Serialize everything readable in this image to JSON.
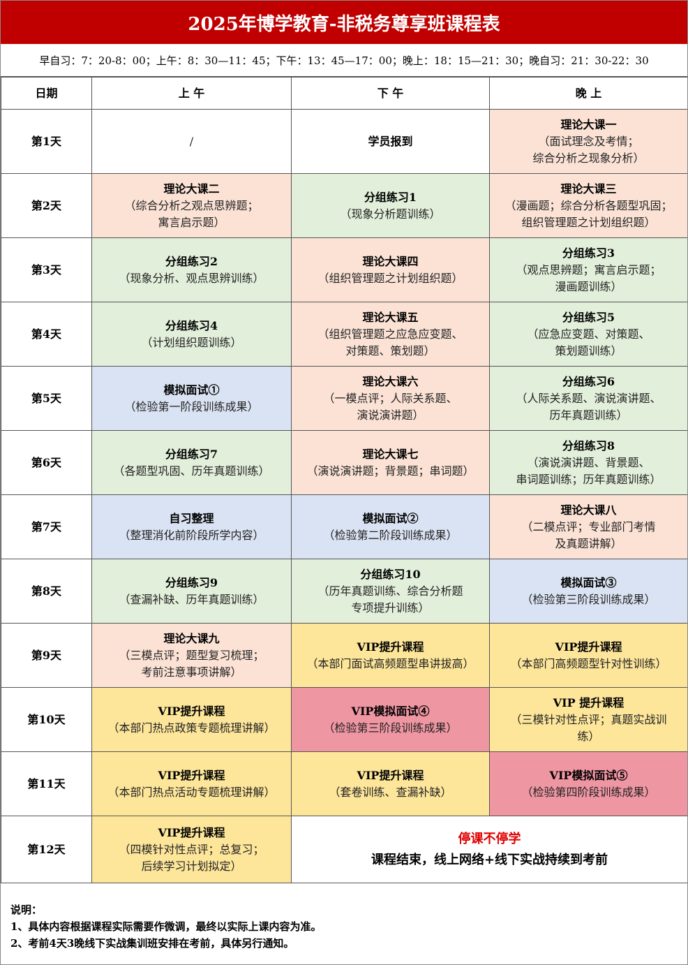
{
  "header": {
    "title": "2025年博学教育-非税务尊享班课程表",
    "schedule": "早自习：7：20-8：00；上午：8：30—11：45；下午：13：45—17：00；晚上：18：15—21：30；晚自习：21：30-22：30"
  },
  "table": {
    "columns": [
      "日期",
      "上 午",
      "下 午",
      "晚 上"
    ],
    "rows": [
      {
        "day": "第1天",
        "cells": [
          {
            "title": "",
            "desc": [
              "/"
            ],
            "color": "#ffffff"
          },
          {
            "title": "学员报到",
            "desc": [],
            "color": "#ffffff"
          },
          {
            "title": "理论大课一",
            "desc": [
              "（面试理念及考情；",
              "综合分析之现象分析）"
            ],
            "color": "#fbe2d5"
          }
        ]
      },
      {
        "day": "第2天",
        "cells": [
          {
            "title": "理论大课二",
            "desc": [
              "（综合分析之观点思辨题；",
              "寓言启示题）"
            ],
            "color": "#fbe2d5"
          },
          {
            "title": "分组练习1",
            "desc": [
              "（现象分析题训练）"
            ],
            "color": "#e2efda"
          },
          {
            "title": "理论大课三",
            "desc": [
              "（漫画题；综合分析各题型巩固；",
              "组织管理题之计划组织题）"
            ],
            "color": "#fbe2d5"
          }
        ]
      },
      {
        "day": "第3天",
        "cells": [
          {
            "title": "分组练习2",
            "desc": [
              "（现象分析、观点思辨训练）"
            ],
            "color": "#e2efda"
          },
          {
            "title": "理论大课四",
            "desc": [
              "（组织管理题之计划组织题）"
            ],
            "color": "#fbe2d5"
          },
          {
            "title": "分组练习3",
            "desc": [
              "（观点思辨题；寓言启示题；",
              "漫画题训练）"
            ],
            "color": "#e2efda"
          }
        ]
      },
      {
        "day": "第4天",
        "cells": [
          {
            "title": "分组练习4",
            "desc": [
              "（计划组织题训练）"
            ],
            "color": "#e2efda"
          },
          {
            "title": "理论大课五",
            "desc": [
              "（组织管理题之应急应变题、",
              "对策题、策划题）"
            ],
            "color": "#fbe2d5"
          },
          {
            "title": "分组练习5",
            "desc": [
              "（应急应变题、对策题、",
              "策划题训练）"
            ],
            "color": "#e2efda"
          }
        ]
      },
      {
        "day": "第5天",
        "cells": [
          {
            "title": "模拟面试①",
            "desc": [
              "（检验第一阶段训练成果）"
            ],
            "color": "#dae3f3"
          },
          {
            "title": "理论大课六",
            "desc": [
              "（一模点评；人际关系题、",
              "演说演讲题）"
            ],
            "color": "#fbe2d5"
          },
          {
            "title": "分组练习6",
            "desc": [
              "（人际关系题、演说演讲题、",
              "历年真题训练）"
            ],
            "color": "#e2efda"
          }
        ]
      },
      {
        "day": "第6天",
        "cells": [
          {
            "title": "分组练习7",
            "desc": [
              "（各题型巩固、历年真题训练）"
            ],
            "color": "#e2efda"
          },
          {
            "title": "理论大课七",
            "desc": [
              "（演说演讲题；背景题；串词题）"
            ],
            "color": "#fbe2d5"
          },
          {
            "title": "分组练习8",
            "desc": [
              "（演说演讲题、背景题、",
              "串词题训练；历年真题训练）"
            ],
            "color": "#e2efda"
          }
        ]
      },
      {
        "day": "第7天",
        "cells": [
          {
            "title": "自习整理",
            "desc": [
              "（整理消化前阶段所学内容）"
            ],
            "color": "#dae3f3"
          },
          {
            "title": "模拟面试②",
            "desc": [
              "（检验第二阶段训练成果）"
            ],
            "color": "#dae3f3"
          },
          {
            "title": "理论大课八",
            "desc": [
              "（二模点评；专业部门考情",
              "及真题讲解）"
            ],
            "color": "#fbe2d5"
          }
        ]
      },
      {
        "day": "第8天",
        "cells": [
          {
            "title": "分组练习9",
            "desc": [
              "（查漏补缺、历年真题训练）"
            ],
            "color": "#e2efda"
          },
          {
            "title": "分组练习10",
            "desc": [
              "（历年真题训练、综合分析题",
              "专项提升训练）"
            ],
            "color": "#e2efda"
          },
          {
            "title": "模拟面试③",
            "desc": [
              "（检验第三阶段训练成果）"
            ],
            "color": "#dae3f3"
          }
        ]
      },
      {
        "day": "第9天",
        "cells": [
          {
            "title": "理论大课九",
            "desc": [
              "（三模点评；题型复习梳理；",
              "考前注意事项讲解）"
            ],
            "color": "#fbe2d5"
          },
          {
            "title": "VIP提升课程",
            "desc": [
              "（本部门面试高频题型串讲拔高）"
            ],
            "color": "#fde69a"
          },
          {
            "title": "VIP提升课程",
            "desc": [
              "（本部门高频题型针对性训练）"
            ],
            "color": "#fde69a"
          }
        ]
      },
      {
        "day": "第10天",
        "cells": [
          {
            "title": "VIP提升课程",
            "desc": [
              "（本部门热点政策专题梳理讲解）"
            ],
            "color": "#fde69a"
          },
          {
            "title": "VIP模拟面试④",
            "desc": [
              "（检验第三阶段训练成果）"
            ],
            "color": "#ee96a2"
          },
          {
            "title": "VIP  提升课程",
            "desc": [
              "（三模针对性点评；真题实战训",
              "练）"
            ],
            "color": "#fde69a"
          }
        ]
      },
      {
        "day": "第11天",
        "cells": [
          {
            "title": "VIP提升课程",
            "desc": [
              "（本部门热点活动专题梳理讲解）"
            ],
            "color": "#fde69a"
          },
          {
            "title": "VIP提升课程",
            "desc": [
              "（套卷训练、查漏补缺）"
            ],
            "color": "#fde69a"
          },
          {
            "title": "VIP模拟面试⑤",
            "desc": [
              "（检验第四阶段训练成果）"
            ],
            "color": "#ee96a2"
          }
        ]
      },
      {
        "day": "第12天",
        "cells": [
          {
            "title": "VIP提升课程",
            "desc": [
              "（四模针对性点评；总复习；",
              "后续学习计划拟定）"
            ],
            "color": "#fde69a"
          },
          {
            "title": "停课不停学",
            "title_color": "#e00000",
            "desc": [
              "课程结束，线上网络+线下实战持续到考前"
            ],
            "desc_bold": true,
            "color": "#ffffff",
            "span": 2
          }
        ]
      }
    ]
  },
  "notes": [
    "说明：",
    "1、具体内容根据课程实际需要作微调，最终以实际上课内容为准。",
    "2、考前4天3晚线下实战集训班安排在考前，具体另行通知。"
  ]
}
